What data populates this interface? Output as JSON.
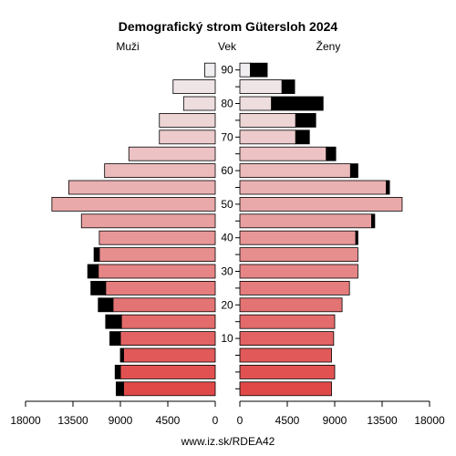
{
  "chart_data": {
    "type": "bar",
    "orientation": "horizontal",
    "title": "Demografický strom Gütersloh 2024",
    "left_label": "Muži",
    "center_label": "Vek",
    "right_label": "Ženy",
    "source": "www.iz.sk/RDEA42",
    "xlim": [
      0,
      18000
    ],
    "x_ticks": [
      {
        "value": 18000,
        "label": "18000"
      },
      {
        "value": 13500,
        "label": "13500"
      },
      {
        "value": 9000,
        "label": "9000"
      },
      {
        "value": 4500,
        "label": "4500"
      },
      {
        "value": 0,
        "label": "0"
      }
    ],
    "x_ticks_right": [
      {
        "value": 0,
        "label": "0"
      },
      {
        "value": 4500,
        "label": "4500"
      },
      {
        "value": 9000,
        "label": "9000"
      },
      {
        "value": 13500,
        "label": "13500"
      },
      {
        "value": 18000,
        "label": "18000"
      }
    ],
    "age_ticks": [
      {
        "group": 0,
        "label": "90"
      },
      {
        "group": 2,
        "label": "80"
      },
      {
        "group": 4,
        "label": "70"
      },
      {
        "group": 6,
        "label": "60"
      },
      {
        "group": 8,
        "label": "50"
      },
      {
        "group": 10,
        "label": "40"
      },
      {
        "group": 12,
        "label": "30"
      },
      {
        "group": 14,
        "label": "20"
      },
      {
        "group": 16,
        "label": "10"
      }
    ],
    "series_note": "Groups ordered from oldest (top) to youngest (bottom); values are population counts; black segment = excess over opposite sex",
    "groups": [
      {
        "male": 1000,
        "male_excess": 0,
        "female": 1000,
        "female_excess": 1600
      },
      {
        "male": 4000,
        "male_excess": 0,
        "female": 4000,
        "female_excess": 1200
      },
      {
        "male": 3000,
        "male_excess": 0,
        "female": 3000,
        "female_excess": 4900
      },
      {
        "male": 5300,
        "male_excess": 0,
        "female": 5300,
        "female_excess": 1900
      },
      {
        "male": 5300,
        "male_excess": 0,
        "female": 5300,
        "female_excess": 1300
      },
      {
        "male": 8200,
        "male_excess": 0,
        "female": 8200,
        "female_excess": 900
      },
      {
        "male": 10500,
        "male_excess": 0,
        "female": 10500,
        "female_excess": 700
      },
      {
        "male": 13900,
        "male_excess": 0,
        "female": 13900,
        "female_excess": 300
      },
      {
        "male": 15500,
        "male_excess": 0,
        "female": 15400,
        "female_excess": 0
      },
      {
        "male": 12700,
        "male_excess": 0,
        "female": 12500,
        "female_excess": 300
      },
      {
        "male": 11000,
        "male_excess": 0,
        "female": 11000,
        "female_excess": 200
      },
      {
        "male": 11000,
        "male_excess": 500,
        "female": 11200,
        "female_excess": 0
      },
      {
        "male": 11100,
        "male_excess": 1000,
        "female": 11200,
        "female_excess": 0
      },
      {
        "male": 10400,
        "male_excess": 1400,
        "female": 10400,
        "female_excess": 0
      },
      {
        "male": 9700,
        "male_excess": 1400,
        "female": 9700,
        "female_excess": 0
      },
      {
        "male": 8900,
        "male_excess": 1500,
        "female": 9000,
        "female_excess": 0
      },
      {
        "male": 9000,
        "male_excess": 1000,
        "female": 8900,
        "female_excess": 0
      },
      {
        "male": 8700,
        "male_excess": 300,
        "female": 8700,
        "female_excess": 0
      },
      {
        "male": 9000,
        "male_excess": 500,
        "female": 9000,
        "female_excess": 0
      },
      {
        "male": 8700,
        "male_excess": 700,
        "female": 8700,
        "female_excess": 0
      }
    ]
  }
}
